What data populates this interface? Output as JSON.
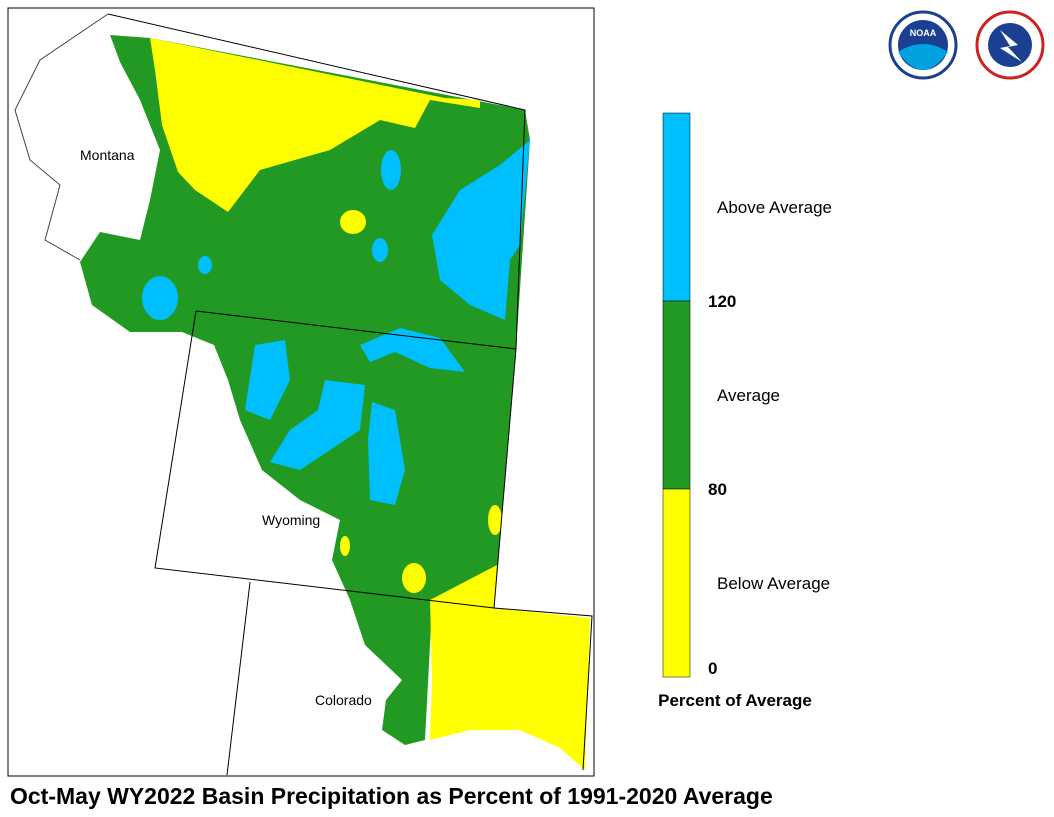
{
  "map": {
    "caption": "Oct-May WY2022 Basin Precipitation as Percent of 1991-2020 Average",
    "labels": [
      "Montana",
      "Wyoming",
      "Colorado"
    ]
  },
  "legend": {
    "title": "Percent of Average",
    "classes": [
      {
        "label": "Above Average",
        "color": "#00bfff"
      },
      {
        "label": "Average",
        "color": "#229922"
      },
      {
        "label": "Below Average",
        "color": "#ffff00"
      }
    ],
    "breaks": [
      120,
      80,
      0
    ]
  },
  "logos": [
    "NOAA"
  ]
}
